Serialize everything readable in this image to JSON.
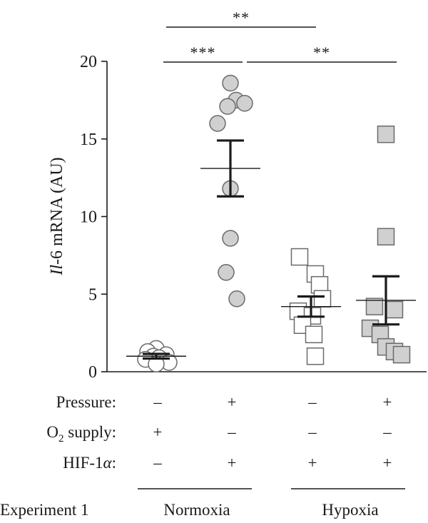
{
  "chart_data": {
    "type": "scatter",
    "ylabel_italic": "Il",
    "ylabel_rest": "-6 mRNA (AU)",
    "ylim": [
      0,
      20
    ],
    "yticks": [
      0,
      5,
      10,
      15,
      20
    ],
    "grid": false,
    "groups": [
      {
        "marker": "circle",
        "fill": "#ffffff",
        "mean": 1.0,
        "err": 0.15,
        "values": [
          1.5,
          1.3,
          1.1,
          1.0,
          0.9,
          0.8,
          0.6,
          0.5
        ]
      },
      {
        "marker": "circle",
        "fill": "#d0d0d0",
        "mean": 13.1,
        "err": 1.8,
        "values": [
          18.6,
          17.5,
          17.3,
          17.1,
          16.0,
          11.8,
          8.6,
          6.4,
          4.7
        ]
      },
      {
        "marker": "square",
        "fill": "#ffffff",
        "mean": 4.2,
        "err": 0.65,
        "values": [
          7.4,
          6.3,
          5.6,
          4.7,
          3.9,
          3.6,
          3.0,
          2.4,
          1.0
        ]
      },
      {
        "marker": "square",
        "fill": "#d0d0d0",
        "mean": 4.6,
        "err": 1.55,
        "values": [
          15.3,
          8.7,
          4.2,
          4.0,
          2.8,
          2.4,
          1.6,
          1.3,
          1.1
        ]
      }
    ],
    "significance": [
      {
        "from": 0,
        "to": 2,
        "label": "**"
      },
      {
        "from": 0,
        "to": 1,
        "label": "***"
      },
      {
        "from": 1,
        "to": 3,
        "label": "**"
      }
    ],
    "conditions": [
      {
        "label": "Pressure:",
        "values": [
          "–",
          "+",
          "–",
          "+"
        ]
      },
      {
        "label_main": "O",
        "label_sub": "2",
        "label_rest": " supply:",
        "values": [
          "+",
          "–",
          "–",
          "–"
        ]
      },
      {
        "label_main": "HIF-1",
        "label_italic": "α",
        "label_rest": ":",
        "values": [
          "–",
          "+",
          "+",
          "+"
        ]
      }
    ],
    "experiment_label": "Experiment 1",
    "group_headers": [
      "Normoxia",
      "Hypoxia"
    ]
  }
}
